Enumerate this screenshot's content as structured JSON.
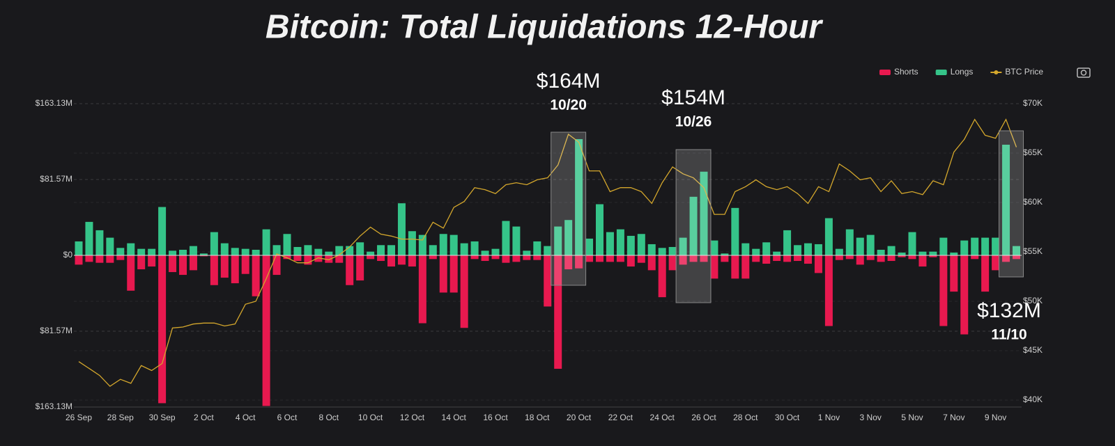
{
  "chart_data": {
    "type": "bar",
    "title": "Bitcoin: Total Liquidations 12-Hour",
    "categories": [
      "26 Sep",
      null,
      null,
      null,
      "28 Sep",
      null,
      null,
      null,
      "30 Sep",
      null,
      null,
      null,
      "2 Oct",
      null,
      null,
      null,
      "4 Oct",
      null,
      null,
      null,
      "6 Oct",
      null,
      null,
      null,
      "8 Oct",
      null,
      null,
      null,
      "10 Oct",
      null,
      null,
      null,
      "12 Oct",
      null,
      null,
      null,
      "14 Oct",
      null,
      null,
      null,
      "16 Oct",
      null,
      null,
      null,
      "18 Oct",
      null,
      null,
      null,
      "20 Oct",
      null,
      null,
      null,
      "22 Oct",
      null,
      null,
      null,
      "24 Oct",
      null,
      null,
      null,
      "26 Oct",
      null,
      null,
      null,
      "28 Oct",
      null,
      null,
      null,
      "30 Oct",
      null,
      null,
      null,
      "1 Nov",
      null,
      null,
      null,
      "3 Nov",
      null,
      null,
      null,
      "5 Nov",
      null,
      null,
      null,
      "7 Nov",
      null,
      null,
      null,
      "9 Nov",
      null,
      null
    ],
    "series": [
      {
        "name": "Shorts",
        "color": "#e8194f",
        "values": [
          -10,
          -7,
          -8,
          -8,
          -5,
          -38,
          -15,
          -12,
          -159,
          -18,
          -21,
          -16,
          -1,
          -32,
          -24,
          -30,
          -20,
          -44,
          -162,
          -21,
          -4,
          -6,
          -10,
          -7,
          -8,
          -8,
          -32,
          -27,
          -4,
          -6,
          -12,
          -10,
          -12,
          -73,
          -4,
          -40,
          -40,
          -78,
          -4,
          -6,
          -4,
          -8,
          -7,
          -5,
          -5,
          -55,
          -122,
          -15,
          -14,
          -7,
          -7,
          -7,
          -7,
          -12,
          -8,
          -16,
          -45,
          -16,
          -10,
          -7,
          -7,
          -25,
          -7,
          -25,
          -25,
          -7,
          -9,
          -6,
          -7,
          -6,
          -9,
          -19,
          -76,
          -5,
          -4,
          -10,
          -5,
          -7,
          -6,
          -2,
          -4,
          -12,
          -2,
          -76,
          -39,
          -85,
          -4,
          -39,
          -16,
          -7,
          -4
        ]
      },
      {
        "name": "Longs",
        "color": "#35c489",
        "values": [
          15,
          36,
          27,
          19,
          8,
          13,
          7,
          7,
          52,
          5,
          6,
          10,
          2,
          25,
          13,
          8,
          7,
          6,
          28,
          11,
          23,
          9,
          11,
          7,
          4,
          10,
          10,
          14,
          4,
          11,
          11,
          56,
          26,
          22,
          11,
          23,
          22,
          13,
          15,
          5,
          7,
          37,
          31,
          5,
          15,
          10,
          31,
          38,
          125,
          18,
          55,
          25,
          28,
          21,
          23,
          12,
          8,
          9,
          19,
          63,
          90,
          16,
          2,
          51,
          13,
          7,
          14,
          4,
          27,
          11,
          13,
          12,
          40,
          7,
          28,
          19,
          22,
          6,
          10,
          3,
          25,
          4,
          4,
          19,
          3,
          16,
          19,
          19,
          19,
          119,
          10
        ]
      },
      {
        "name": "BTC Price",
        "color": "#d4a72c",
        "type": "line",
        "axis": "y2",
        "values": [
          43.9,
          43.2,
          42.5,
          41.4,
          42.1,
          41.7,
          43.5,
          43.0,
          43.7,
          47.3,
          47.4,
          47.7,
          47.8,
          47.8,
          47.5,
          47.7,
          49.7,
          50.0,
          52.3,
          54.8,
          54.4,
          53.9,
          53.9,
          54.4,
          54.2,
          54.7,
          55.5,
          56.6,
          57.5,
          56.8,
          56.6,
          56.3,
          56.3,
          56.2,
          58.0,
          57.4,
          59.5,
          60.1,
          61.5,
          61.3,
          60.9,
          61.8,
          62.0,
          61.8,
          62.3,
          62.5,
          63.8,
          66.9,
          66.1,
          63.2,
          63.2,
          61.1,
          61.5,
          61.5,
          61.1,
          59.9,
          62.0,
          63.6,
          62.9,
          62.5,
          61.5,
          58.8,
          58.8,
          61.1,
          61.6,
          62.3,
          61.6,
          61.3,
          61.6,
          60.9,
          59.9,
          61.6,
          61.1,
          63.9,
          63.2,
          62.3,
          62.5,
          61.1,
          62.2,
          60.9,
          61.1,
          60.8,
          62.2,
          61.8,
          65.1,
          66.4,
          68.4,
          66.8,
          66.5,
          68.4,
          65.6
        ]
      }
    ],
    "ylim": [
      -163.13,
      163.13
    ],
    "yticks": [
      {
        "value": 163.13,
        "label": "$163.13M"
      },
      {
        "value": 81.57,
        "label": "$81.57M"
      },
      {
        "value": 0,
        "label": "$0"
      },
      {
        "value": -81.57,
        "label": "$81.57M"
      },
      {
        "value": -163.13,
        "label": "$163.13M"
      }
    ],
    "y2lim": [
      39.3,
      70
    ],
    "y2ticks": [
      {
        "value": 40,
        "label": "$40K"
      },
      {
        "value": 45,
        "label": "$45K"
      },
      {
        "value": 50,
        "label": "$50K"
      },
      {
        "value": 55,
        "label": "$55K"
      },
      {
        "value": 60,
        "label": "$60K"
      },
      {
        "value": 65,
        "label": "$65K"
      },
      {
        "value": 70,
        "label": "$70K"
      }
    ],
    "grid": true,
    "legend": "top-right",
    "annotations": [
      {
        "text": "$164M",
        "date": "10/20"
      },
      {
        "text": "$154M",
        "date": "10/26"
      },
      {
        "text": "$132M",
        "date": "11/10"
      }
    ]
  }
}
